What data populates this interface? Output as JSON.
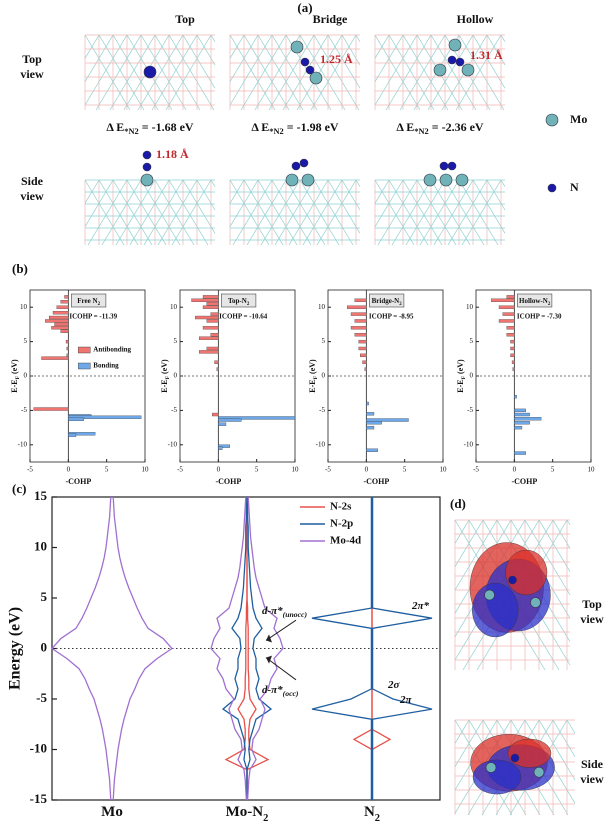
{
  "labels": [
    "(a)",
    "(b)",
    "(c)",
    "(d)"
  ],
  "panel_a": {
    "columns": [
      "Top",
      "Bridge",
      "Hollow"
    ],
    "rows": [
      [
        "Top",
        "view"
      ],
      [
        "Side",
        "view"
      ]
    ],
    "energies": [
      [
        "Δ E",
        "*N2",
        " = -1.68 eV"
      ],
      [
        "Δ E",
        "*N2",
        " = -1.98 eV"
      ],
      [
        "Δ E",
        "*N2",
        " = -2.36 eV"
      ]
    ],
    "bonds": [
      "1.25 Å",
      "1.31 Å",
      "1.18 Å"
    ],
    "legend": [
      "Mo",
      "N"
    ]
  },
  "panel_d": {
    "rows": [
      [
        "Top",
        "view"
      ],
      [
        "Side",
        "view"
      ]
    ]
  },
  "chart_data": [
    {
      "type": "bar",
      "orientation": "horizontal",
      "title": [
        "Free N",
        "2"
      ],
      "annotation": "ICOHP = -11.39",
      "x": [
        11.5,
        10.8,
        10,
        9.2,
        8.5,
        8,
        7.5,
        7,
        6.5,
        5,
        4,
        3,
        2.6,
        -4.8,
        -5.8,
        -6,
        -6.3,
        -8.4,
        -8.6
      ],
      "values": [
        -0.5,
        -1,
        -1.5,
        -2,
        -2.5,
        -3,
        -1.8,
        -2.2,
        -1,
        -0.3,
        -0.2,
        -0.2,
        -3.5,
        -4.5,
        3,
        9.5,
        2,
        3.5,
        1
      ],
      "xlim": [
        -5,
        10
      ],
      "xticks": [
        -5,
        0,
        5,
        10
      ],
      "ylim": [
        -12.5,
        12.5
      ],
      "yticks": [
        -10,
        -5,
        0,
        5,
        10
      ],
      "ylabel": [
        "E-E",
        "F",
        " (eV)"
      ],
      "xlabel": "-COHP",
      "colors": {
        "antibonding": "#f07470",
        "bonding": "#6fa8e8"
      },
      "legend": [
        "Antibonding",
        "Bonding"
      ]
    },
    {
      "type": "bar",
      "orientation": "horizontal",
      "title": [
        "Top-N",
        "2"
      ],
      "annotation": "ICOHP = -10.64",
      "x": [
        11.5,
        11,
        10.5,
        10,
        9,
        8.5,
        8,
        7,
        6,
        5.5,
        4,
        3.5,
        2,
        1,
        -5.6,
        -6.1,
        -6.4,
        -7,
        -10.2,
        -10.5
      ],
      "values": [
        -2,
        -3.5,
        -1.5,
        -2,
        -1,
        -3,
        -1.5,
        -2,
        -1,
        -2.5,
        -1.5,
        -2.5,
        -0.5,
        -0.2,
        -0.8,
        10,
        3,
        1,
        1.5,
        0.5
      ],
      "xlim": [
        -5,
        10
      ],
      "xticks": [
        -5,
        0,
        5,
        10
      ],
      "ylim": [
        -12.5,
        12.5
      ],
      "yticks": [
        -10,
        -5,
        0,
        5,
        10
      ],
      "ylabel": [
        "E-E",
        "F",
        " (eV)"
      ],
      "xlabel": "-COHP",
      "colors": {
        "antibonding": "#f07470",
        "bonding": "#6fa8e8"
      }
    },
    {
      "type": "bar",
      "orientation": "horizontal",
      "title": [
        "Bridge-N",
        "2"
      ],
      "annotation": "ICOHP = -8.95",
      "x": [
        11,
        10,
        9,
        8,
        7,
        6,
        5,
        4,
        3,
        2,
        1,
        -4,
        -5.5,
        -6.4,
        -6.8,
        -7.5,
        -10.8
      ],
      "values": [
        -1.5,
        -2.5,
        -2,
        -1.5,
        -2,
        -1.5,
        -1,
        -1,
        -0.8,
        -0.5,
        -0.2,
        0.3,
        1,
        5.5,
        2,
        1,
        1.5
      ],
      "xlim": [
        -5,
        10
      ],
      "xticks": [
        -5,
        0,
        5,
        10
      ],
      "ylim": [
        -12.5,
        12.5
      ],
      "yticks": [
        -10,
        -5,
        0,
        5,
        10
      ],
      "ylabel": [
        "E-E",
        "F",
        " (eV)"
      ],
      "xlabel": "-COHP",
      "colors": {
        "antibonding": "#f07470",
        "bonding": "#6fa8e8"
      }
    },
    {
      "type": "bar",
      "orientation": "horizontal",
      "title": [
        "Hollow-N",
        "2"
      ],
      "annotation": "ICOHP = -7.30",
      "x": [
        11.5,
        11,
        10,
        9,
        8,
        7,
        6,
        5,
        4,
        3,
        2,
        1,
        -3,
        -5,
        -5.6,
        -6.2,
        -6.8,
        -7.5,
        -11.2
      ],
      "values": [
        -1,
        -3,
        -2,
        -1.5,
        -2,
        -1,
        -1,
        -0.5,
        -0.5,
        -0.5,
        -0.3,
        -0.2,
        0.3,
        1.5,
        2,
        3.5,
        2,
        1,
        1.5
      ],
      "xlim": [
        -5,
        10
      ],
      "xticks": [
        -5,
        0,
        5,
        10
      ],
      "ylim": [
        -12.5,
        12.5
      ],
      "yticks": [
        -10,
        -5,
        0,
        5,
        10
      ],
      "ylabel": [
        "E-E",
        "F",
        " (eV)"
      ],
      "xlabel": "-COHP",
      "colors": {
        "antibonding": "#f07470",
        "bonding": "#6fa8e8"
      }
    },
    {
      "type": "area",
      "ylabel": "Energy (eV)",
      "ylim": [
        -15,
        15
      ],
      "yticks": [
        -15,
        -10,
        -5,
        0,
        5,
        10,
        15
      ],
      "categories": [
        [
          "Mo"
        ],
        [
          "Mo-N",
          "2"
        ],
        [
          "N",
          "2"
        ]
      ],
      "x": [
        -15,
        -14,
        -13,
        -12,
        -11,
        -10,
        -9,
        -8,
        -7,
        -6,
        -5,
        -4,
        -3,
        -2,
        -1,
        0,
        1,
        2,
        3,
        4,
        5,
        6,
        7,
        8,
        9,
        10,
        11,
        12,
        13,
        14,
        15
      ],
      "series": [
        {
          "name": "N-2s",
          "color": "#e8504a",
          "values": [
            null,
            [
              0,
              0,
              0,
              0,
              0.35,
              0.05,
              0.03,
              0.03,
              0.05,
              0.15,
              0.05,
              0.03,
              0.03,
              0.02,
              0.02,
              0.02,
              0.02,
              0.02,
              0.01,
              0.01,
              0,
              0,
              0,
              0,
              0,
              0,
              0,
              0,
              0,
              0,
              0
            ],
            [
              0,
              0,
              0,
              0,
              0,
              0,
              0.3,
              0,
              0,
              0,
              0,
              0,
              0,
              0,
              0,
              0,
              0,
              0,
              0,
              0,
              0,
              0,
              0,
              0,
              0,
              0,
              0,
              0,
              0,
              0,
              0
            ]
          ]
        },
        {
          "name": "N-2p",
          "color": "#1f5fa0",
          "values": [
            null,
            [
              0,
              0,
              0,
              0,
              0.05,
              0.03,
              0.05,
              0.1,
              0.15,
              0.4,
              0.2,
              0.15,
              0.2,
              0.15,
              0.15,
              0.1,
              0.12,
              0.25,
              0.15,
              0.1,
              0.08,
              0.06,
              0.05,
              0.04,
              0.03,
              0.02,
              0.02,
              0.02,
              0.01,
              0.01,
              0.01
            ],
            [
              0.01,
              0.01,
              0.01,
              0.01,
              0.01,
              0.01,
              0.01,
              0.01,
              0.01,
              1,
              0.35,
              0.01,
              0.01,
              0.01,
              0.01,
              0.01,
              0.01,
              0.01,
              1,
              0.01,
              0.01,
              0.01,
              0.01,
              0.01,
              0.01,
              0.01,
              0.01,
              0.01,
              0.01,
              0.01,
              0.01
            ]
          ]
        },
        {
          "name": "Mo-4d",
          "color": "#a070d0",
          "values": [
            [
              0.02,
              0.03,
              0.04,
              0.06,
              0.08,
              0.1,
              0.13,
              0.16,
              0.2,
              0.25,
              0.3,
              0.38,
              0.45,
              0.55,
              0.75,
              1,
              0.85,
              0.6,
              0.5,
              0.42,
              0.35,
              0.28,
              0.22,
              0.17,
              0.13,
              0.1,
              0.08,
              0.06,
              0.04,
              0.03,
              0.02
            ],
            [
              0.01,
              0.02,
              0.03,
              0.05,
              0.15,
              0.08,
              0.1,
              0.2,
              0.25,
              0.3,
              0.22,
              0.35,
              0.4,
              0.5,
              0.45,
              0.6,
              0.55,
              0.45,
              0.5,
              0.3,
              0.25,
              0.2,
              0.15,
              0.12,
              0.1,
              0.08,
              0.06,
              0.05,
              0.04,
              0.03,
              0.02
            ],
            null
          ]
        }
      ],
      "annotations": [
        [
          "d-π*",
          "(unocc)"
        ],
        [
          "d-π*",
          "(occ)"
        ],
        [
          "2π*"
        ],
        [
          "2σ"
        ],
        [
          "2π"
        ]
      ]
    }
  ]
}
